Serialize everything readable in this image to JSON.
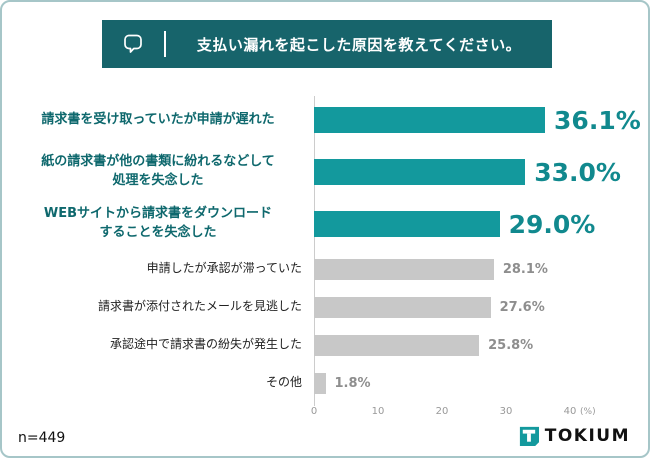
{
  "page": {
    "background": "#ffffff",
    "border_color": "#a6c6c8"
  },
  "header": {
    "question": "支払い漏れを起こした原因を教えてください。",
    "bg_color": "#17646b",
    "icon": "speech-bubble"
  },
  "chart_data": {
    "type": "bar",
    "orientation": "horizontal",
    "title": "支払い漏れを起こした原因を教えてください。",
    "xlabel": "(%)",
    "xlim": [
      0,
      40
    ],
    "xticks": [
      0,
      10,
      20,
      30,
      40
    ],
    "grid": false,
    "legend": false,
    "categories": [
      "請求書を受け取っていたが申請が遅れた",
      "紙の請求書が他の書類に紛れるなどして処理を失念した",
      "WEBサイトから請求書をダウンロードすることを失念した",
      "申請したが承認が滞っていた",
      "請求書が添付されたメールを見逃した",
      "承認途中で請求書の紛失が発生した",
      "その他"
    ],
    "values": [
      36.1,
      33.0,
      29.0,
      28.1,
      27.6,
      25.8,
      1.8
    ],
    "rows": [
      {
        "lines": [
          "請求書を受け取っていたが申請が遅れた"
        ],
        "value": 36.1,
        "display": "36.1%",
        "highlight": true
      },
      {
        "lines": [
          "紙の請求書が他の書類に紛れるなどして",
          "処理を失念した"
        ],
        "value": 33.0,
        "display": "33.0%",
        "highlight": true
      },
      {
        "lines": [
          "WEBサイトから請求書をダウンロード",
          "することを失念した"
        ],
        "value": 29.0,
        "display": "29.0%",
        "highlight": true
      },
      {
        "lines": [
          "申請したが承認が滞っていた"
        ],
        "value": 28.1,
        "display": "28.1%",
        "highlight": false
      },
      {
        "lines": [
          "請求書が添付されたメールを見逃した"
        ],
        "value": 27.6,
        "display": "27.6%",
        "highlight": false
      },
      {
        "lines": [
          "承認途中で請求書の紛失が発生した"
        ],
        "value": 25.8,
        "display": "25.8%",
        "highlight": false
      },
      {
        "lines": [
          "その他"
        ],
        "value": 1.8,
        "display": "1.8%",
        "highlight": false
      }
    ],
    "colors": {
      "highlight_bar": "#13999d",
      "normal_bar": "#c8c8c8",
      "highlight_value_text": "#11898e",
      "normal_value_text": "#8e8e8e",
      "highlight_category_text": "#0e686d",
      "normal_category_text": "#222222",
      "axis_text": "#999999",
      "brand_teal": "#13999d"
    }
  },
  "footer": {
    "sample_size": "n=449",
    "brand": "TOKIUM"
  }
}
